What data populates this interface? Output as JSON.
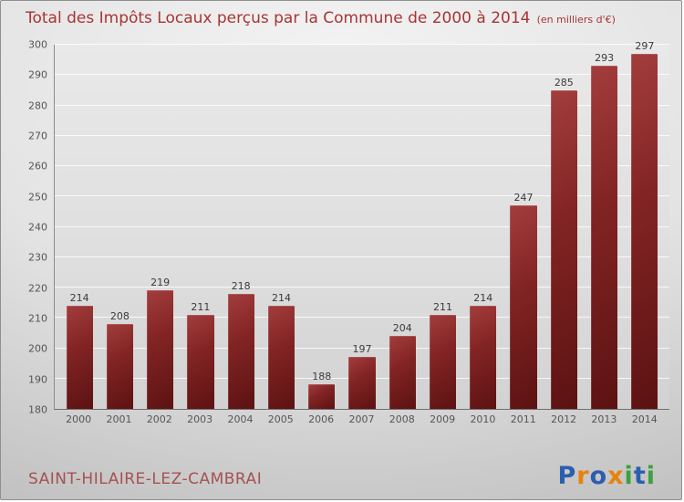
{
  "title": "Total des Impôts Locaux perçus par la Commune de 2000 à 2014",
  "subtitle": "(en milliers d'€)",
  "footer": {
    "commune": "SAINT-HILAIRE-LEZ-CAMBRAI"
  },
  "logo": {
    "name": "Proxiti",
    "letters": [
      {
        "ch": "P",
        "color": "#2b5fae"
      },
      {
        "ch": "r",
        "color": "#e8820c"
      },
      {
        "ch": "o",
        "color": "#2b5fae"
      },
      {
        "ch": "x",
        "color": "#e8820c"
      },
      {
        "ch": "i",
        "color": "#3fa03f"
      },
      {
        "ch": "t",
        "color": "#2b5fae"
      },
      {
        "ch": "i",
        "color": "#3fa03f"
      }
    ]
  },
  "colors": {
    "title": "#a93434",
    "commune": "#a65151",
    "bar_light": "#a33d3d",
    "bar_dark": "#5c1212"
  },
  "chart_data": {
    "type": "bar",
    "title": "Total des Impôts Locaux perçus par la Commune de 2000 à 2014",
    "subtitle": "(en milliers d'€)",
    "categories": [
      "2000",
      "2001",
      "2002",
      "2003",
      "2004",
      "2005",
      "2006",
      "2007",
      "2008",
      "2009",
      "2010",
      "2011",
      "2012",
      "2013",
      "2014"
    ],
    "values": [
      214,
      208,
      219,
      211,
      218,
      214,
      188,
      197,
      204,
      211,
      214,
      247,
      285,
      293,
      297
    ],
    "xlabel": "",
    "ylabel": "",
    "ylim": [
      180,
      300
    ],
    "ytick_step": 10,
    "grid": true,
    "legend": false
  }
}
